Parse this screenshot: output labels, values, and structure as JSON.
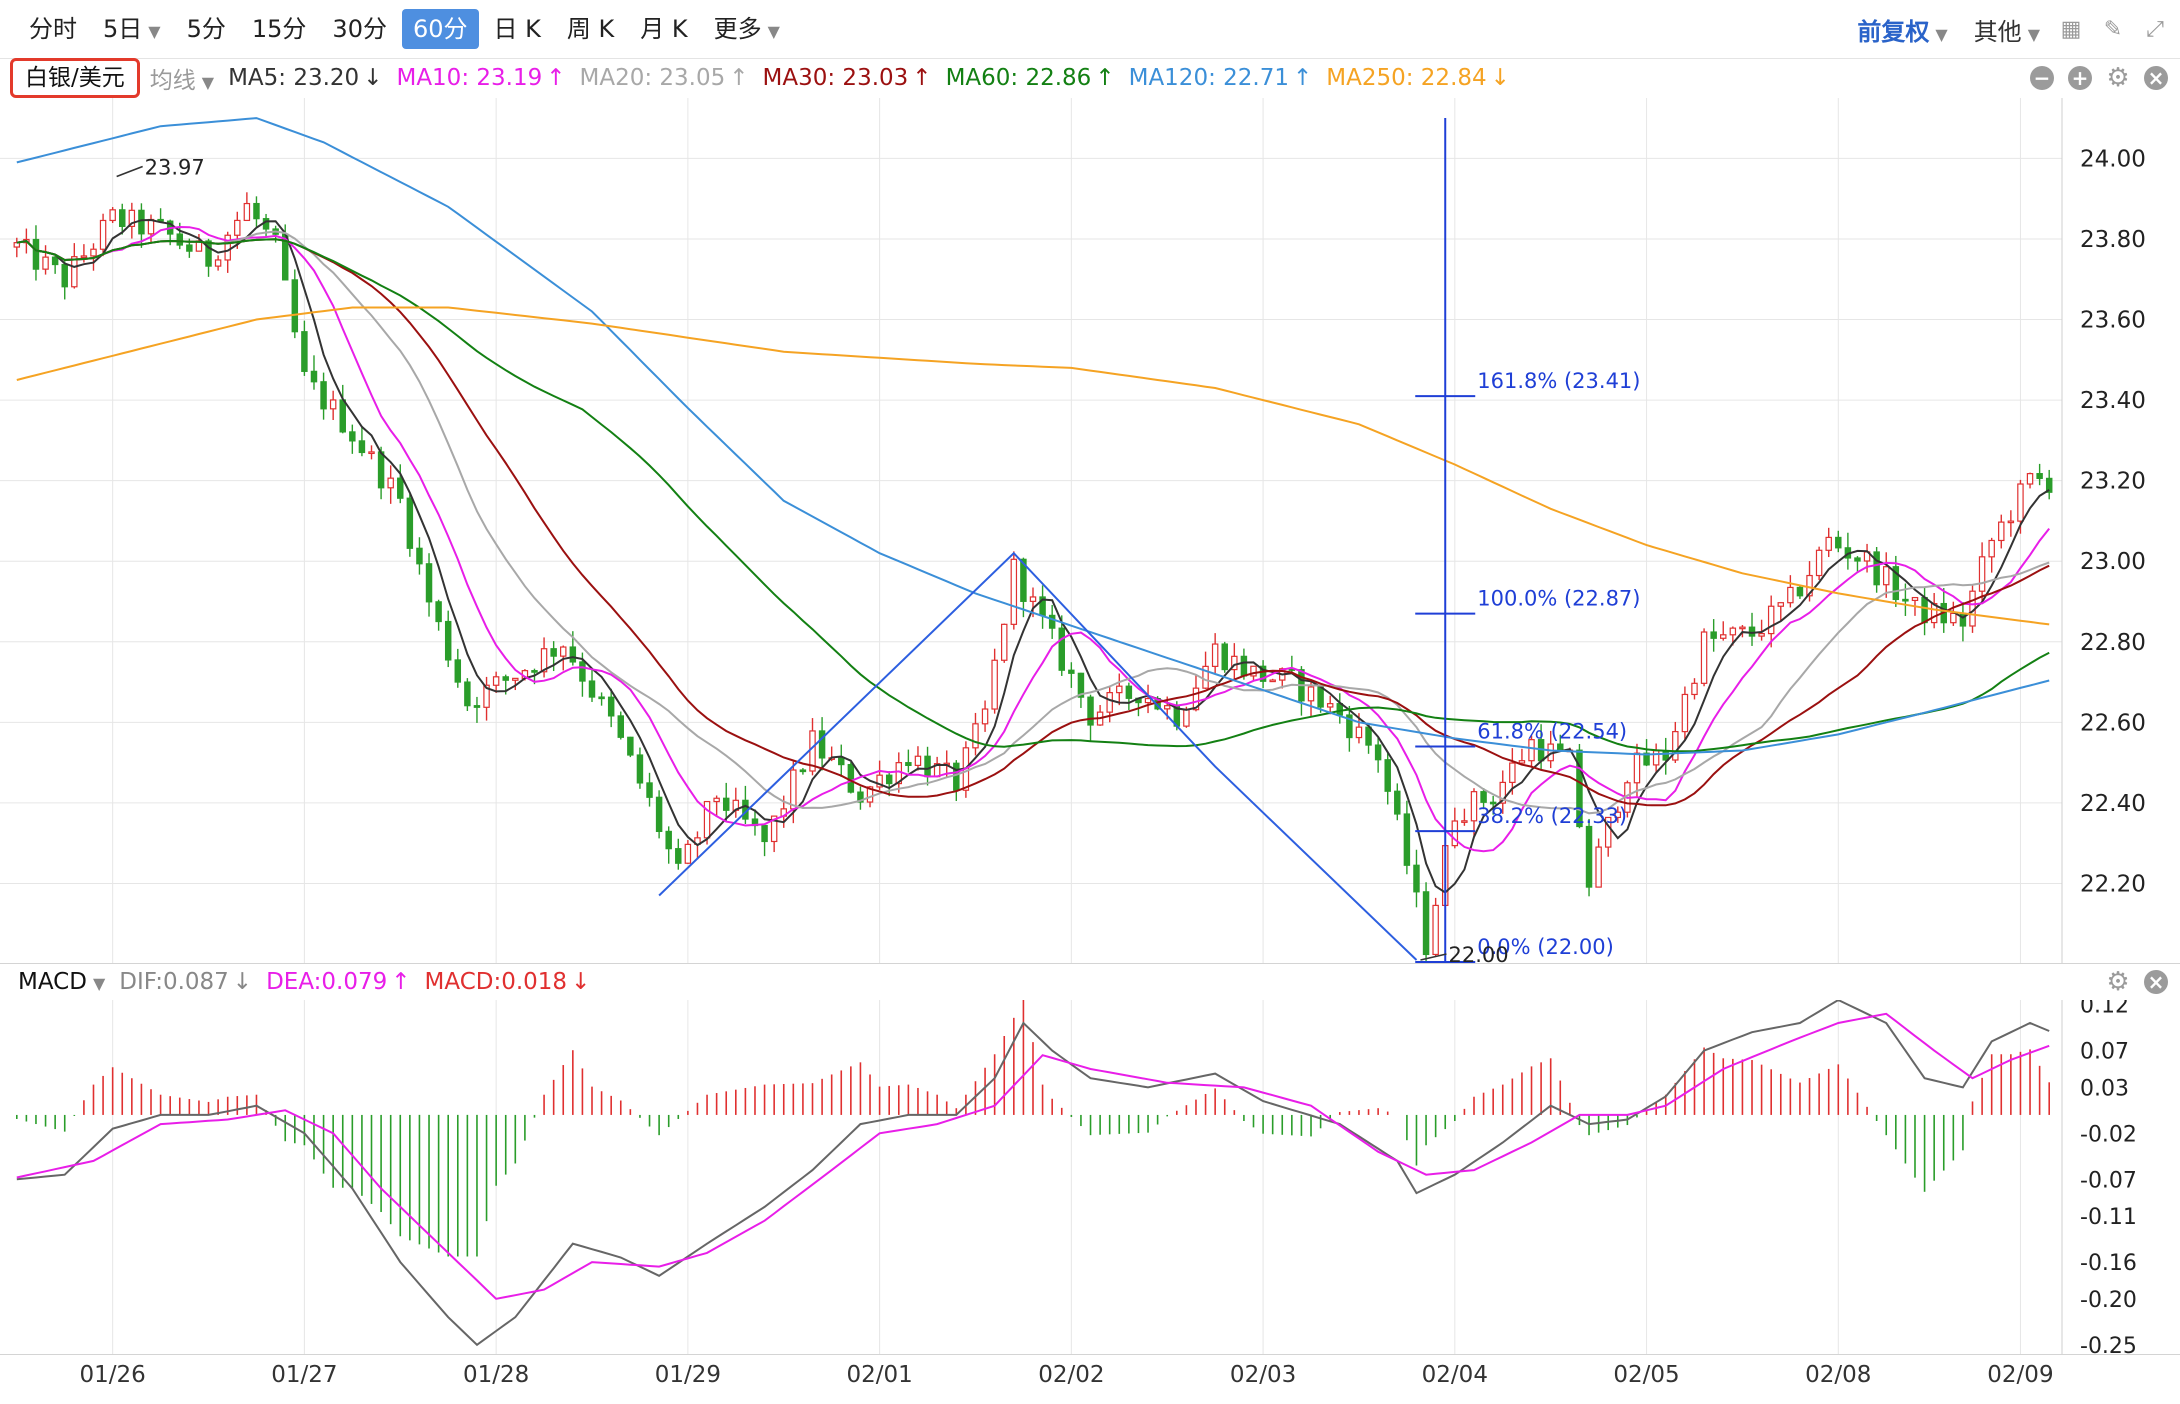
{
  "toolbar": {
    "periods": [
      {
        "label": "分时",
        "active": false,
        "caret": false
      },
      {
        "label": "5日",
        "active": false,
        "caret": true
      },
      {
        "label": "5分",
        "active": false,
        "caret": false
      },
      {
        "label": "15分",
        "active": false,
        "caret": false
      },
      {
        "label": "30分",
        "active": false,
        "caret": false
      },
      {
        "label": "60分",
        "active": true,
        "caret": false
      },
      {
        "label": "日 K",
        "active": false,
        "caret": false
      },
      {
        "label": "周 K",
        "active": false,
        "caret": false
      },
      {
        "label": "月 K",
        "active": false,
        "caret": false
      },
      {
        "label": "更多",
        "active": false,
        "caret": true
      }
    ],
    "adjust_label": "前复权",
    "other_label": "其他",
    "icons": [
      "grid-icon",
      "pen-icon",
      "fullscreen-icon"
    ]
  },
  "symbol": "白银/美元",
  "ma_type": "均线",
  "ma_legend": [
    {
      "label": "MA5: 23.20",
      "arrow": "↓",
      "color": "#333333"
    },
    {
      "label": "MA10: 23.19",
      "arrow": "↑",
      "color": "#e81ee8"
    },
    {
      "label": "MA20: 23.05",
      "arrow": "↑",
      "color": "#a8a8a8"
    },
    {
      "label": "MA30: 23.03",
      "arrow": "↑",
      "color": "#9b1010"
    },
    {
      "label": "MA60: 22.86",
      "arrow": "↑",
      "color": "#138013"
    },
    {
      "label": "MA120: 22.71",
      "arrow": "↑",
      "color": "#3b8fd8"
    },
    {
      "label": "MA250: 22.84",
      "arrow": "↓",
      "color": "#f5a323"
    }
  ],
  "ma_controls": [
    "minus-circle-icon",
    "plus-circle-icon",
    "gear-icon",
    "close-circle-icon"
  ],
  "colors": {
    "up": "#e03030",
    "down": "#2a9d2a",
    "fib": "#1f3fd6",
    "grid": "#e6e6e6"
  },
  "chart_data": [
    {
      "type": "candlestick",
      "title": "白银/美元",
      "y_ticks": [
        "24.00",
        "23.80",
        "23.60",
        "23.40",
        "23.20",
        "23.00",
        "22.80",
        "22.60",
        "22.40",
        "22.20"
      ],
      "ylim": [
        22.0,
        24.15
      ],
      "x_ticks": [
        "01/26",
        "01/27",
        "01/28",
        "01/29",
        "02/01",
        "02/02",
        "02/03",
        "02/04",
        "02/05",
        "02/08",
        "02/09"
      ],
      "x_tick_index": [
        10,
        30,
        50,
        70,
        90,
        110,
        130,
        150,
        170,
        190,
        209
      ],
      "bar_count": 213,
      "price_path": [
        [
          0,
          23.78
        ],
        [
          5,
          23.7
        ],
        [
          10,
          23.85
        ],
        [
          15,
          23.82
        ],
        [
          20,
          23.75
        ],
        [
          24,
          23.88
        ],
        [
          27,
          23.78
        ],
        [
          30,
          23.45
        ],
        [
          34,
          23.35
        ],
        [
          37,
          23.25
        ],
        [
          40,
          23.15
        ],
        [
          43,
          22.9
        ],
        [
          47,
          22.65
        ],
        [
          52,
          22.72
        ],
        [
          57,
          22.8
        ],
        [
          62,
          22.6
        ],
        [
          66,
          22.4
        ],
        [
          69,
          22.22
        ],
        [
          73,
          22.42
        ],
        [
          78,
          22.3
        ],
        [
          83,
          22.55
        ],
        [
          88,
          22.42
        ],
        [
          93,
          22.52
        ],
        [
          98,
          22.45
        ],
        [
          101,
          22.62
        ],
        [
          104,
          22.98
        ],
        [
          108,
          22.8
        ],
        [
          112,
          22.62
        ],
        [
          117,
          22.68
        ],
        [
          121,
          22.62
        ],
        [
          125,
          22.78
        ],
        [
          129,
          22.72
        ],
        [
          133,
          22.7
        ],
        [
          138,
          22.62
        ],
        [
          142,
          22.52
        ],
        [
          145,
          22.25
        ],
        [
          147,
          22.05
        ],
        [
          150,
          22.38
        ],
        [
          154,
          22.42
        ],
        [
          158,
          22.55
        ],
        [
          162,
          22.5
        ],
        [
          164,
          22.2
        ],
        [
          168,
          22.48
        ],
        [
          172,
          22.52
        ],
        [
          176,
          22.8
        ],
        [
          181,
          22.82
        ],
        [
          185,
          22.9
        ],
        [
          189,
          23.05
        ],
        [
          193,
          23.0
        ],
        [
          198,
          22.88
        ],
        [
          203,
          22.85
        ],
        [
          206,
          23.05
        ],
        [
          210,
          23.2
        ],
        [
          213,
          23.2
        ]
      ],
      "series": [
        {
          "name": "MA5",
          "color": "#333333"
        },
        {
          "name": "MA10",
          "color": "#e81ee8"
        },
        {
          "name": "MA20",
          "color": "#a8a8a8"
        },
        {
          "name": "MA30",
          "color": "#9b1010"
        },
        {
          "name": "MA60",
          "color": "#138013"
        },
        {
          "name": "MA120",
          "color": "#3b8fd8",
          "path": [
            [
              0,
              23.99
            ],
            [
              15,
              24.08
            ],
            [
              25,
              24.1
            ],
            [
              32,
              24.04
            ],
            [
              45,
              23.88
            ],
            [
              60,
              23.62
            ],
            [
              70,
              23.38
            ],
            [
              80,
              23.15
            ],
            [
              90,
              23.02
            ],
            [
              100,
              22.92
            ],
            [
              110,
              22.84
            ],
            [
              120,
              22.76
            ],
            [
              130,
              22.68
            ],
            [
              140,
              22.6
            ],
            [
              150,
              22.56
            ],
            [
              160,
              22.53
            ],
            [
              170,
              22.52
            ],
            [
              180,
              22.53
            ],
            [
              190,
              22.57
            ],
            [
              200,
              22.63
            ],
            [
              213,
              22.71
            ]
          ]
        },
        {
          "name": "MA250",
          "color": "#f5a323",
          "path": [
            [
              0,
              23.45
            ],
            [
              15,
              23.54
            ],
            [
              25,
              23.6
            ],
            [
              35,
              23.63
            ],
            [
              45,
              23.63
            ],
            [
              60,
              23.59
            ],
            [
              80,
              23.52
            ],
            [
              100,
              23.49
            ],
            [
              110,
              23.48
            ],
            [
              125,
              23.43
            ],
            [
              140,
              23.34
            ],
            [
              150,
              23.24
            ],
            [
              160,
              23.13
            ],
            [
              170,
              23.04
            ],
            [
              180,
              22.97
            ],
            [
              190,
              22.92
            ],
            [
              200,
              22.88
            ],
            [
              213,
              22.84
            ]
          ]
        }
      ],
      "annotations": [
        {
          "text": "23.97",
          "index": 10,
          "value": 23.97
        },
        {
          "text": "22.00",
          "index": 146,
          "value": 22.0
        }
      ],
      "zigzag": [
        [
          67,
          22.17
        ],
        [
          104,
          23.02
        ],
        [
          125,
          22.49
        ],
        [
          146,
          22.01
        ]
      ],
      "fibonacci": {
        "index": 149,
        "top": 24.15,
        "bottom": 22.0,
        "levels": [
          {
            "label": "161.8% (23.41)",
            "value": 23.41
          },
          {
            "label": "100.0% (22.87)",
            "value": 22.87
          },
          {
            "label": "61.8% (22.54)",
            "value": 22.54
          },
          {
            "label": "38.2% (22.33)",
            "value": 22.33
          },
          {
            "label": "0.0% (22.00)",
            "value": 22.0
          }
        ]
      }
    },
    {
      "type": "macd",
      "title": "MACD",
      "legend": [
        {
          "label": "DIF:0.087",
          "arrow": "↓",
          "color": "#888888"
        },
        {
          "label": "DEA:0.079",
          "arrow": "↑",
          "color": "#e81ee8"
        },
        {
          "label": "MACD:0.018",
          "arrow": "↓",
          "color": "#e03030"
        }
      ],
      "y_ticks": [
        "0.12",
        "0.07",
        "0.03",
        "-0.02",
        "-0.07",
        "-0.11",
        "-0.16",
        "-0.20",
        "-0.25"
      ],
      "ylim": [
        -0.26,
        0.125
      ],
      "dif_path": [
        [
          0,
          -0.07
        ],
        [
          5,
          -0.065
        ],
        [
          10,
          -0.015
        ],
        [
          15,
          0.0
        ],
        [
          20,
          0.0
        ],
        [
          25,
          0.01
        ],
        [
          30,
          -0.02
        ],
        [
          35,
          -0.08
        ],
        [
          40,
          -0.16
        ],
        [
          45,
          -0.22
        ],
        [
          48,
          -0.25
        ],
        [
          52,
          -0.22
        ],
        [
          58,
          -0.14
        ],
        [
          63,
          -0.155
        ],
        [
          67,
          -0.175
        ],
        [
          72,
          -0.14
        ],
        [
          78,
          -0.1
        ],
        [
          83,
          -0.06
        ],
        [
          88,
          -0.01
        ],
        [
          93,
          0.0
        ],
        [
          98,
          0.0
        ],
        [
          102,
          0.04
        ],
        [
          105,
          0.1
        ],
        [
          108,
          0.07
        ],
        [
          112,
          0.04
        ],
        [
          118,
          0.03
        ],
        [
          125,
          0.045
        ],
        [
          130,
          0.015
        ],
        [
          138,
          -0.01
        ],
        [
          144,
          -0.05
        ],
        [
          146,
          -0.085
        ],
        [
          150,
          -0.065
        ],
        [
          155,
          -0.03
        ],
        [
          160,
          0.01
        ],
        [
          164,
          -0.01
        ],
        [
          168,
          -0.005
        ],
        [
          172,
          0.02
        ],
        [
          176,
          0.07
        ],
        [
          181,
          0.09
        ],
        [
          186,
          0.1
        ],
        [
          190,
          0.125
        ],
        [
          195,
          0.1
        ],
        [
          199,
          0.04
        ],
        [
          203,
          0.03
        ],
        [
          206,
          0.08
        ],
        [
          210,
          0.1
        ],
        [
          213,
          0.087
        ]
      ],
      "dea_path": [
        [
          0,
          -0.068
        ],
        [
          8,
          -0.05
        ],
        [
          15,
          -0.01
        ],
        [
          22,
          -0.005
        ],
        [
          28,
          0.005
        ],
        [
          33,
          -0.02
        ],
        [
          38,
          -0.08
        ],
        [
          43,
          -0.13
        ],
        [
          50,
          -0.2
        ],
        [
          55,
          -0.19
        ],
        [
          60,
          -0.16
        ],
        [
          67,
          -0.165
        ],
        [
          72,
          -0.15
        ],
        [
          78,
          -0.115
        ],
        [
          85,
          -0.06
        ],
        [
          90,
          -0.02
        ],
        [
          96,
          -0.01
        ],
        [
          102,
          0.01
        ],
        [
          107,
          0.065
        ],
        [
          112,
          0.05
        ],
        [
          120,
          0.035
        ],
        [
          128,
          0.03
        ],
        [
          135,
          0.01
        ],
        [
          142,
          -0.04
        ],
        [
          147,
          -0.065
        ],
        [
          152,
          -0.06
        ],
        [
          158,
          -0.03
        ],
        [
          163,
          0.0
        ],
        [
          168,
          0.0
        ],
        [
          172,
          0.01
        ],
        [
          178,
          0.05
        ],
        [
          185,
          0.08
        ],
        [
          190,
          0.1
        ],
        [
          195,
          0.11
        ],
        [
          200,
          0.07
        ],
        [
          204,
          0.04
        ],
        [
          208,
          0.06
        ],
        [
          213,
          0.079
        ]
      ]
    }
  ]
}
